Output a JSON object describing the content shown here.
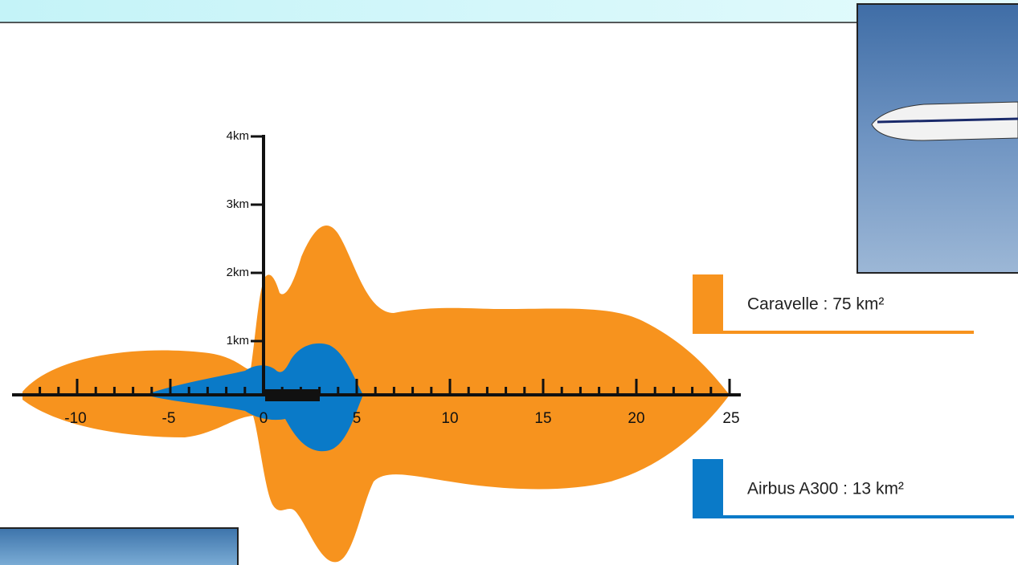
{
  "diagram": {
    "y_axis_labels": [
      "4km",
      "3km",
      "2km",
      "1km"
    ],
    "x_axis_labels": [
      "-10",
      "-5",
      "0",
      "5",
      "10",
      "15",
      "20",
      "25"
    ],
    "legend": [
      "Caravelle : 75 km²",
      "Airbus A300 : 13 km²"
    ]
  }
}
